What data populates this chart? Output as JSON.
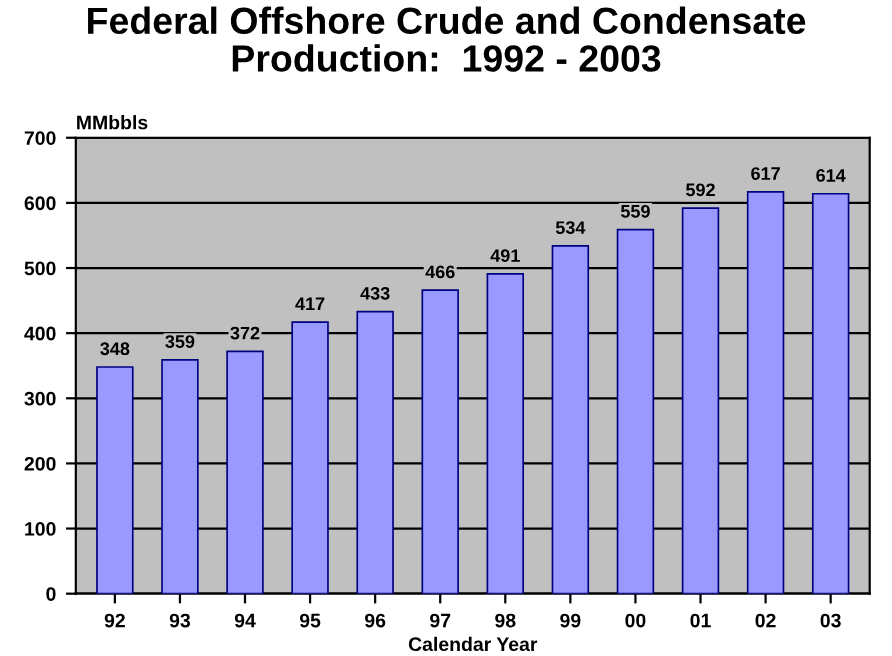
{
  "chart_data": {
    "type": "bar",
    "title": "Federal Offshore Crude and Condensate\nProduction:  1992 - 2003",
    "xlabel": "Calendar Year",
    "ylabel": "MMbbls",
    "categories": [
      "92",
      "93",
      "94",
      "95",
      "96",
      "97",
      "98",
      "99",
      "00",
      "01",
      "02",
      "03"
    ],
    "values": [
      348,
      359,
      372,
      417,
      433,
      466,
      491,
      534,
      559,
      592,
      617,
      614
    ],
    "color": "#9999ff",
    "data_labels": true,
    "ylim": [
      0,
      700
    ],
    "yticks": [
      0,
      100,
      200,
      300,
      400,
      500,
      600,
      700
    ],
    "grid": "y"
  }
}
